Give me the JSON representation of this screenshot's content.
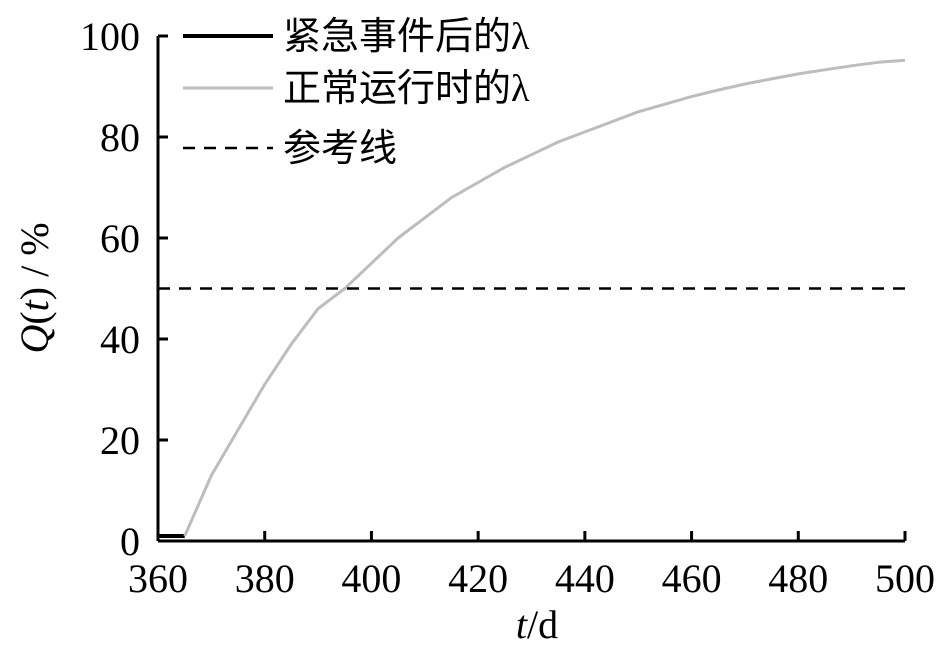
{
  "chart_data": {
    "type": "line",
    "xlabel": "t/d",
    "ylabel": "Q(t) / %",
    "xlim": [
      360,
      500
    ],
    "ylim": [
      0,
      100
    ],
    "xticks": [
      "360",
      "380",
      "400",
      "420",
      "440",
      "460",
      "480",
      "500"
    ],
    "yticks": [
      "0",
      "20",
      "40",
      "60",
      "80",
      "100"
    ],
    "grid": false,
    "legend_position": "top-left",
    "series": [
      {
        "name": "紧急事件后的λ",
        "color": "#000000",
        "style": "solid",
        "x": [
          360,
          365
        ],
        "y": [
          1,
          1
        ]
      },
      {
        "name": "正常运行时的λ",
        "color": "#bdbdbd",
        "style": "solid",
        "x": [
          365,
          370,
          375,
          380,
          385,
          390,
          395,
          400,
          405,
          410,
          415,
          420,
          425,
          430,
          435,
          440,
          445,
          450,
          455,
          460,
          465,
          470,
          475,
          480,
          485,
          490,
          495,
          500
        ],
        "y": [
          1,
          13,
          22,
          31,
          39,
          46,
          50,
          55,
          60,
          64,
          68,
          71,
          74,
          76.5,
          79,
          81,
          83,
          85,
          86.5,
          88,
          89.3,
          90.5,
          91.5,
          92.5,
          93.3,
          94.1,
          94.8,
          95.2
        ]
      },
      {
        "name": "参考线",
        "color": "#000000",
        "style": "dashed",
        "x": [
          360,
          500
        ],
        "y": [
          50,
          50
        ]
      }
    ]
  }
}
